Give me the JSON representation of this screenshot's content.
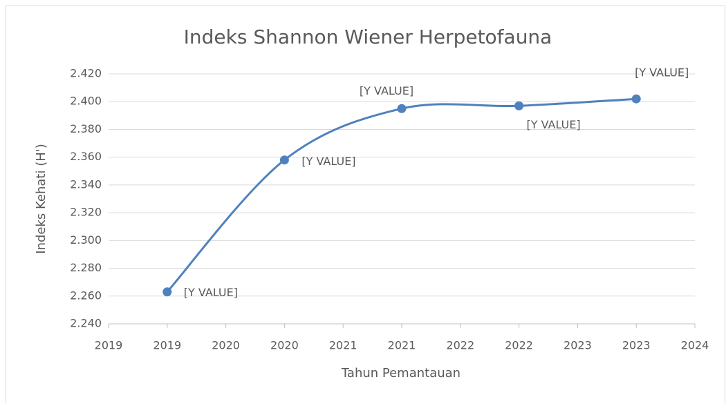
{
  "chart_data": {
    "type": "line",
    "title": "Indeks Shannon Wiener Herpetofauna",
    "x_label": "Tahun Pemantauan",
    "y_label": "Indeks Kehati (H')",
    "x": [
      2019.5,
      2020.5,
      2021.5,
      2022.5,
      2023.5
    ],
    "series": [
      {
        "name": "Indeks Kehati",
        "color": "#4f81bd",
        "values": [
          2.263,
          2.358,
          2.395,
          2.397,
          2.402
        ],
        "value_labels": [
          "[Y VALUE]",
          "[Y VALUE]",
          "[Y VALUE]",
          "[Y VALUE]",
          "[Y VALUE]"
        ]
      }
    ],
    "xlim": [
      2019,
      2024
    ],
    "xticks": [
      2019,
      {
        "value": 2019.5,
        "label": "2019"
      },
      2020,
      {
        "value": 2020.5,
        "label": "2020"
      },
      2021,
      {
        "value": 2021.5,
        "label": "2021"
      },
      2022,
      {
        "value": 2022.5,
        "label": "2022"
      },
      2023,
      {
        "value": 2023.5,
        "label": "2023"
      },
      2024
    ],
    "ylim": [
      2.24,
      2.42
    ],
    "yticks": [
      {
        "value": 2.24,
        "label": "2.240"
      },
      {
        "value": 2.26,
        "label": "2.260"
      },
      {
        "value": 2.28,
        "label": "2.280"
      },
      {
        "value": 2.3,
        "label": "2.300"
      },
      {
        "value": 2.32,
        "label": "2.320"
      },
      {
        "value": 2.34,
        "label": "2.340"
      },
      {
        "value": 2.36,
        "label": "2.360"
      },
      {
        "value": 2.38,
        "label": "2.380"
      },
      {
        "value": 2.4,
        "label": "2.400"
      },
      {
        "value": 2.42,
        "label": "2.420"
      }
    ],
    "grid": true,
    "smooth": true
  }
}
